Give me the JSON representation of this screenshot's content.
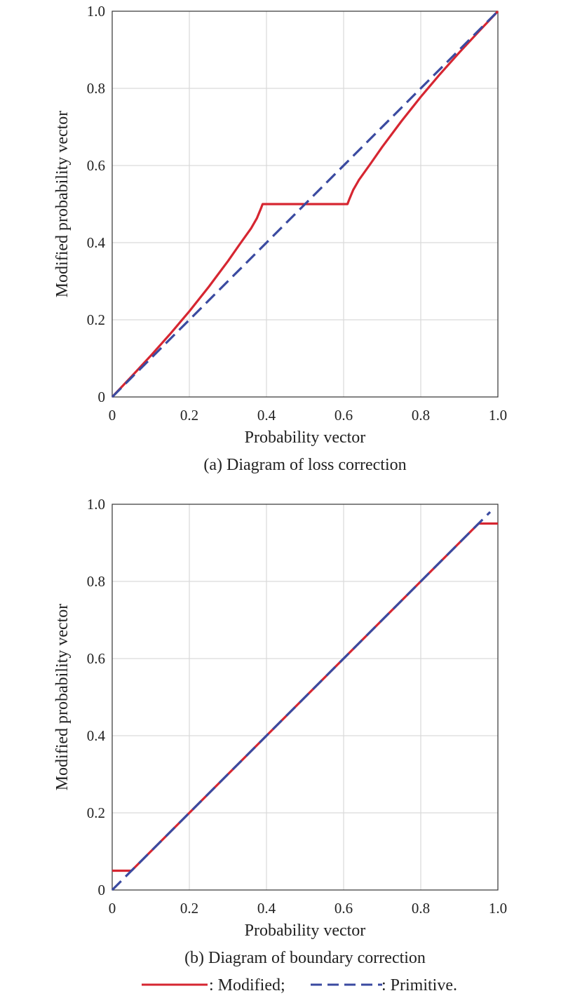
{
  "colors": {
    "modified": "#d62631",
    "primitive": "#3a4aa0",
    "grid": "#d9d9d9",
    "axis": "#333333"
  },
  "legend": {
    "modified_label": ": Modified;",
    "primitive_label": ": Primitive."
  },
  "chart_data": [
    {
      "type": "line",
      "caption": "(a) Diagram of loss correction",
      "xlabel": "Probability vector",
      "ylabel": "Modified probability vector",
      "xlim": [
        0,
        1
      ],
      "ylim": [
        0,
        1
      ],
      "x_ticks": [
        "0",
        "0.2",
        "0.4",
        "0.6",
        "0.8",
        "1.0"
      ],
      "y_ticks": [
        "0",
        "0.2",
        "0.4",
        "0.6",
        "0.8",
        "1.0"
      ],
      "grid": true,
      "series": [
        {
          "name": "Modified",
          "style": "solid",
          "x": [
            0,
            0.05,
            0.1,
            0.15,
            0.2,
            0.25,
            0.3,
            0.33,
            0.36,
            0.375,
            0.385,
            0.39,
            0.5,
            0.61,
            0.615,
            0.625,
            0.64,
            0.67,
            0.7,
            0.75,
            0.8,
            0.85,
            0.9,
            0.95,
            1.0
          ],
          "y": [
            0,
            0.053,
            0.107,
            0.163,
            0.222,
            0.285,
            0.352,
            0.395,
            0.437,
            0.463,
            0.487,
            0.5,
            0.5,
            0.5,
            0.513,
            0.537,
            0.563,
            0.605,
            0.648,
            0.715,
            0.778,
            0.837,
            0.893,
            0.947,
            1.0
          ]
        },
        {
          "name": "Primitive",
          "style": "dashed",
          "x": [
            0,
            1.0
          ],
          "y": [
            0,
            1.0
          ]
        }
      ]
    },
    {
      "type": "line",
      "caption": "(b) Diagram of boundary correction",
      "xlabel": "Probability vector",
      "ylabel": "Modified probability vector",
      "xlim": [
        0,
        1
      ],
      "ylim": [
        0,
        1
      ],
      "x_ticks": [
        "0",
        "0.2",
        "0.4",
        "0.6",
        "0.8",
        "1.0"
      ],
      "y_ticks": [
        "0",
        "0.2",
        "0.4",
        "0.6",
        "0.8",
        "1.0"
      ],
      "grid": true,
      "series": [
        {
          "name": "Modified",
          "style": "solid",
          "x": [
            0,
            0.05,
            0.95,
            1.0
          ],
          "y": [
            0.05,
            0.05,
            0.95,
            0.95
          ]
        },
        {
          "name": "Primitive",
          "style": "dashed",
          "x": [
            0,
            0.98
          ],
          "y": [
            0,
            0.98
          ]
        }
      ]
    }
  ]
}
